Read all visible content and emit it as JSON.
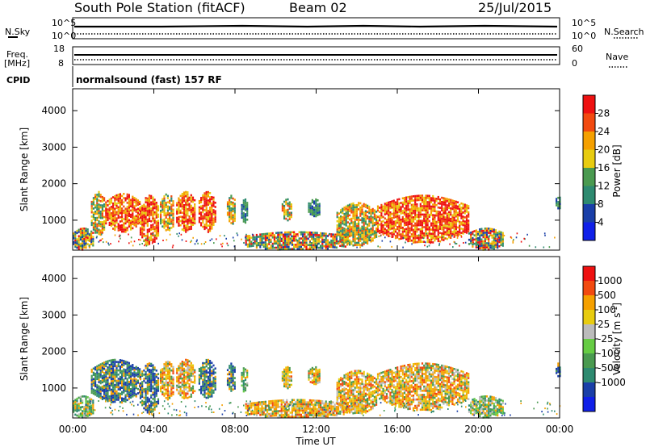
{
  "header": {
    "station": "South Pole Station (fitACF)",
    "beam": "Beam 02",
    "date": "25/Jul/2015"
  },
  "noise_panel": {
    "left_label": "N.Sky",
    "left_ticks": [
      "10^5",
      "10^0"
    ],
    "right_label": "N.Search",
    "right_ticks": [
      "10^5",
      "10^0"
    ]
  },
  "freq_panel": {
    "left_label_1": "Freq.",
    "left_label_2": "[MHz]",
    "left_ticks": [
      "18",
      "8"
    ],
    "right_label": "Nave",
    "right_ticks": [
      "60",
      "0"
    ]
  },
  "cpid_panel": {
    "label": "CPID",
    "text": "normalsound (fast) 157 RF"
  },
  "colors": {
    "red": "#ee1111",
    "orange_red": "#f24a10",
    "orange": "#f5a000",
    "yellow": "#e8cc10",
    "green": "#4a9a50",
    "teal": "#2e8a70",
    "blue": "#1a3fa8",
    "bright_blue": "#1020e8",
    "light_green": "#66cc44",
    "grey": "#bbbbbb"
  },
  "chart_data": [
    {
      "type": "heatmap",
      "name": "power",
      "ylabel": "Slant Range [km]",
      "ylim": [
        180,
        4600
      ],
      "yticks": [
        1000,
        2000,
        3000,
        4000
      ],
      "xlim": [
        0,
        24
      ],
      "colorbar": {
        "label": "Power [dB]",
        "ticks": [
          "4",
          "8",
          "12",
          "16",
          "20",
          "24",
          "28"
        ],
        "bands": [
          "#1020e8",
          "#1a3fa8",
          "#2e8a70",
          "#4a9a50",
          "#e8cc10",
          "#f5a000",
          "#f24a10",
          "#ee1111"
        ]
      },
      "echo_regions": [
        {
          "t0": 0.0,
          "t1": 1.0,
          "r0": 200,
          "r1": 800,
          "level": "mixed"
        },
        {
          "t0": 0.9,
          "t1": 1.6,
          "r0": 600,
          "r1": 1800,
          "level": "medium"
        },
        {
          "t0": 1.6,
          "t1": 3.3,
          "r0": 700,
          "r1": 1750,
          "level": "high"
        },
        {
          "t0": 3.3,
          "t1": 4.2,
          "r0": 300,
          "r1": 1700,
          "level": "high"
        },
        {
          "t0": 4.3,
          "t1": 5.0,
          "r0": 700,
          "r1": 1750,
          "level": "medium"
        },
        {
          "t0": 5.1,
          "t1": 6.0,
          "r0": 700,
          "r1": 1800,
          "level": "high"
        },
        {
          "t0": 6.2,
          "t1": 7.0,
          "r0": 700,
          "r1": 1800,
          "level": "high"
        },
        {
          "t0": 7.6,
          "t1": 8.0,
          "r0": 900,
          "r1": 1700,
          "level": "medium"
        },
        {
          "t0": 8.3,
          "t1": 8.6,
          "r0": 900,
          "r1": 1600,
          "level": "low"
        },
        {
          "t0": 10.3,
          "t1": 10.8,
          "r0": 1000,
          "r1": 1600,
          "level": "medium"
        },
        {
          "t0": 11.6,
          "t1": 12.2,
          "r0": 1100,
          "r1": 1600,
          "level": "low"
        },
        {
          "t0": 8.5,
          "t1": 13.5,
          "r0": 200,
          "r1": 700,
          "level": "mixed"
        },
        {
          "t0": 13.0,
          "t1": 15.0,
          "r0": 300,
          "r1": 1500,
          "level": "medium"
        },
        {
          "t0": 15.0,
          "t1": 19.5,
          "r0": 400,
          "r1": 1700,
          "level": "high"
        },
        {
          "t0": 19.5,
          "t1": 21.2,
          "r0": 200,
          "r1": 800,
          "level": "mixed"
        },
        {
          "t0": 23.8,
          "t1": 24.0,
          "r0": 1300,
          "r1": 1700,
          "level": "low"
        }
      ]
    },
    {
      "type": "heatmap",
      "name": "velocity",
      "xlabel": "Time UT",
      "ylabel": "Slant Range [km]",
      "ylim": [
        180,
        4600
      ],
      "yticks": [
        1000,
        2000,
        3000,
        4000
      ],
      "xlim": [
        0,
        24
      ],
      "xticks": [
        "00:00",
        "04:00",
        "08:00",
        "12:00",
        "16:00",
        "20:00",
        "00:00"
      ],
      "colorbar": {
        "label": "Velocity [m s",
        "label_sup": "-1",
        "label_end": "]",
        "ticks": [
          "1000",
          "500",
          "100",
          "25",
          "-25",
          "-100",
          "-500",
          "-1000"
        ],
        "bands": [
          "#1020e8",
          "#1a3fa8",
          "#2e8a70",
          "#4a9a50",
          "#66cc44",
          "#bbbbbb",
          "#e8cc10",
          "#f5a000",
          "#f24a10",
          "#ee1111"
        ]
      },
      "echo_regions": [
        {
          "t0": 0.0,
          "t1": 1.0,
          "r0": 200,
          "r1": 800,
          "level": "green"
        },
        {
          "t0": 0.9,
          "t1": 3.3,
          "r0": 600,
          "r1": 1800,
          "level": "blue"
        },
        {
          "t0": 3.3,
          "t1": 4.2,
          "r0": 300,
          "r1": 1700,
          "level": "blue"
        },
        {
          "t0": 4.3,
          "t1": 5.0,
          "r0": 700,
          "r1": 1750,
          "level": "orange"
        },
        {
          "t0": 5.1,
          "t1": 6.0,
          "r0": 700,
          "r1": 1800,
          "level": "orange"
        },
        {
          "t0": 6.2,
          "t1": 7.0,
          "r0": 700,
          "r1": 1800,
          "level": "blue"
        },
        {
          "t0": 7.6,
          "t1": 8.0,
          "r0": 900,
          "r1": 1700,
          "level": "blue"
        },
        {
          "t0": 8.3,
          "t1": 8.6,
          "r0": 900,
          "r1": 1600,
          "level": "green"
        },
        {
          "t0": 10.3,
          "t1": 10.8,
          "r0": 1000,
          "r1": 1600,
          "level": "orange"
        },
        {
          "t0": 11.6,
          "t1": 12.2,
          "r0": 1100,
          "r1": 1600,
          "level": "orange"
        },
        {
          "t0": 8.5,
          "t1": 13.5,
          "r0": 200,
          "r1": 700,
          "level": "orange"
        },
        {
          "t0": 13.0,
          "t1": 15.0,
          "r0": 300,
          "r1": 1500,
          "level": "orange"
        },
        {
          "t0": 15.0,
          "t1": 19.5,
          "r0": 400,
          "r1": 1700,
          "level": "orange"
        },
        {
          "t0": 19.5,
          "t1": 21.2,
          "r0": 200,
          "r1": 800,
          "level": "green"
        },
        {
          "t0": 23.8,
          "t1": 24.0,
          "r0": 1300,
          "r1": 1700,
          "level": "blue"
        }
      ]
    }
  ]
}
